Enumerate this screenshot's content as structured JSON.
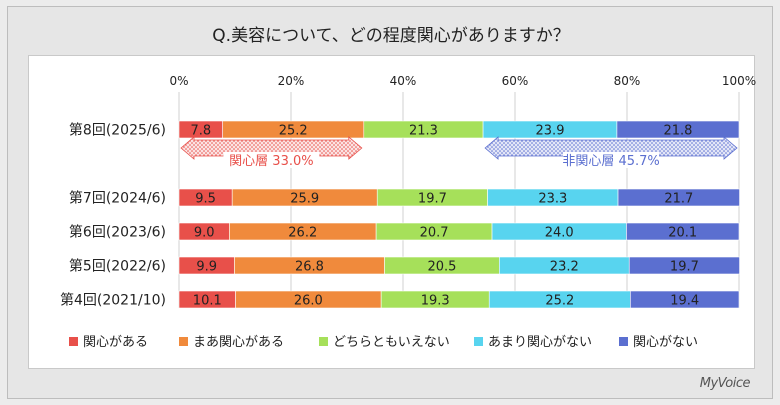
{
  "title": "Q.美容について、どの程度関心がありますか？",
  "logo": "MyVoice",
  "colors": {
    "c1": "#e8504a",
    "c2": "#f08a3c",
    "c3": "#a6e05a",
    "c4": "#58d4ef",
    "c5": "#5b6fd0",
    "interested": "#e8504a",
    "notInterested": "#5b6fd0"
  },
  "chart_data": {
    "type": "bar",
    "orientation": "horizontal-stacked-100",
    "xlim": [
      0,
      100
    ],
    "ticks": [
      "0%",
      "20%",
      "40%",
      "60%",
      "80%",
      "100%"
    ],
    "categories": [
      "第8回(2025/6)",
      "第7回(2024/6)",
      "第6回(2023/6)",
      "第5回(2022/6)",
      "第4回(2021/10)"
    ],
    "series": [
      {
        "name": "関心がある",
        "values": [
          7.8,
          9.5,
          9.0,
          9.9,
          10.1
        ]
      },
      {
        "name": "まあ関心がある",
        "values": [
          25.2,
          25.9,
          26.2,
          26.8,
          26.0
        ]
      },
      {
        "name": "どちらともいえない",
        "values": [
          21.3,
          19.7,
          20.7,
          20.5,
          19.3
        ]
      },
      {
        "name": "あまり関心がない",
        "values": [
          23.9,
          23.3,
          24.0,
          23.2,
          25.2
        ]
      },
      {
        "name": "関心がない",
        "values": [
          21.8,
          21.7,
          20.1,
          19.7,
          19.4
        ]
      }
    ],
    "labels": [
      [
        "7.8",
        "25.2",
        "21.3",
        "23.9",
        "21.8"
      ],
      [
        "9.5",
        "25.9",
        "19.7",
        "23.3",
        "21.7"
      ],
      [
        "9.0",
        "26.2",
        "20.7",
        "24.0",
        "20.1"
      ],
      [
        "9.9",
        "26.8",
        "20.5",
        "23.2",
        "19.7"
      ],
      [
        "10.1",
        "26.0",
        "19.3",
        "25.2",
        "19.4"
      ]
    ],
    "annotations": [
      {
        "text": "関心層 33.0%",
        "from": 0,
        "to": 33.0,
        "series_group": "interested"
      },
      {
        "text": "非関心層 45.7%",
        "from": 54.3,
        "to": 100,
        "series_group": "notInterested"
      }
    ]
  }
}
